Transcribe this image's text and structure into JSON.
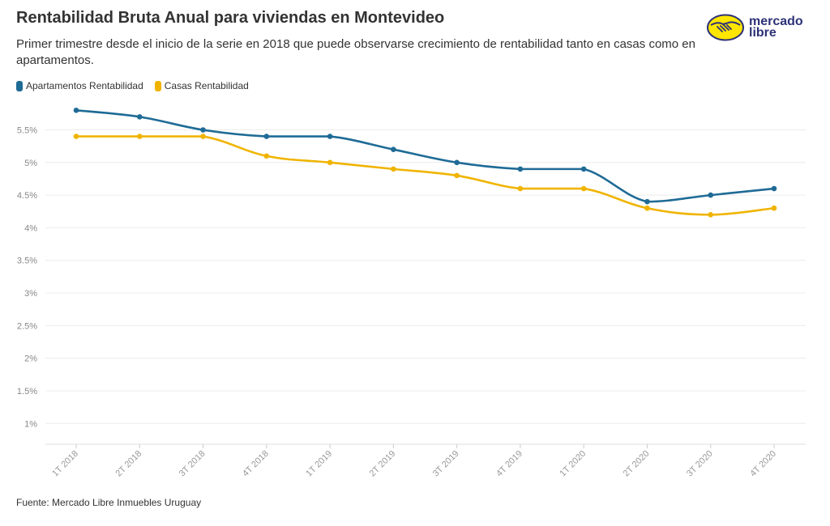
{
  "header": {
    "title": "Rentabilidad Bruta Anual para viviendas en Montevideo",
    "subtitle": "Primer trimestre desde el inicio de la serie en 2018 que puede observarse crecimiento de rentabilidad tanto en casas como en apartamentos."
  },
  "logo": {
    "line1": "mercado",
    "line2": "libre"
  },
  "legend": [
    {
      "label": "Apartamentos Rentabilidad",
      "color": "#1f6b96"
    },
    {
      "label": "Casas Rentabilidad",
      "color": "#f0b400"
    }
  ],
  "source": "Fuente: Mercado Libre Inmuebles Uruguay",
  "chart_data": {
    "type": "line",
    "categories": [
      "1T 2018",
      "2T 2018",
      "3T 2018",
      "4T 2018",
      "1T 2019",
      "2T 2019",
      "3T 2019",
      "4T 2019",
      "1T 2020",
      "2T 2020",
      "3T 2020",
      "4T 2020"
    ],
    "series": [
      {
        "name": "Apartamentos Rentabilidad",
        "color": "#1f6b96",
        "values": [
          5.8,
          5.7,
          5.5,
          5.4,
          5.4,
          5.2,
          5.0,
          4.9,
          4.9,
          4.4,
          4.5,
          4.6
        ]
      },
      {
        "name": "Casas Rentabilidad",
        "color": "#f0b400",
        "values": [
          5.4,
          5.4,
          5.4,
          5.1,
          5.0,
          4.9,
          4.8,
          4.6,
          4.6,
          4.3,
          4.2,
          4.3
        ]
      }
    ],
    "yticks": [
      1,
      1.5,
      2,
      2.5,
      3,
      3.5,
      4,
      4.5,
      5,
      5.5
    ],
    "ytick_labels": [
      "1%",
      "1.5%",
      "2%",
      "2.5%",
      "3%",
      "3.5%",
      "4%",
      "4.5%",
      "5%",
      "5.5%"
    ],
    "ylim": [
      0.6,
      6.0
    ],
    "grid": true,
    "legend_position": "top-left"
  }
}
